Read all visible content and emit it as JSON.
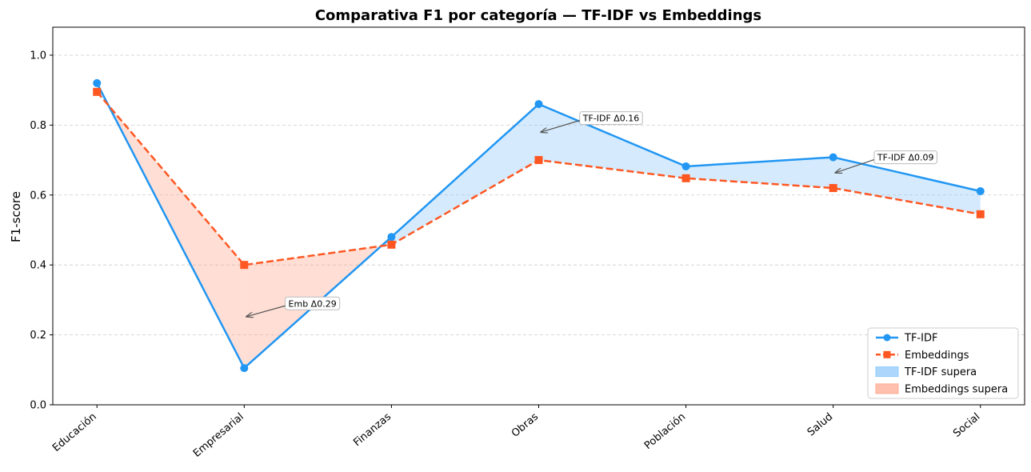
{
  "chart_data": {
    "type": "line",
    "title": "Comparativa F1 por categoría — TF-IDF vs Embeddings",
    "xlabel": "",
    "ylabel": "F1-score",
    "ylim": [
      0,
      1.08
    ],
    "yticks": [
      "0.0",
      "0.2",
      "0.4",
      "0.6",
      "0.8",
      "1.0"
    ],
    "ytick_values": [
      0,
      0.2,
      0.4,
      0.6,
      0.8,
      1.0
    ],
    "grid": true,
    "legend_position": "bottom-right",
    "categories": [
      "Educación",
      "Empresarial",
      "Finanzas",
      "Obras",
      "Población",
      "Salud",
      "Social"
    ],
    "series": [
      {
        "name": "TF-IDF",
        "values": [
          0.92,
          0.105,
          0.48,
          0.86,
          0.682,
          0.708,
          0.611
        ],
        "color": "#2196F3",
        "marker": "circle",
        "linestyle": "solid"
      },
      {
        "name": "Embeddings",
        "values": [
          0.895,
          0.4,
          0.458,
          0.7,
          0.648,
          0.62,
          0.545
        ],
        "color": "#FF5722",
        "marker": "square",
        "linestyle": "dashed"
      }
    ],
    "fills": [
      {
        "name": "TF-IDF supera",
        "color": "#90CAF9"
      },
      {
        "name": "Embeddings supera",
        "color": "#FFAB91"
      }
    ],
    "annotations": [
      {
        "text": "Emb  Δ0.29",
        "category_index": 1,
        "value": 0.2525,
        "text_value": 0.29
      },
      {
        "text": "TF-IDF  Δ0.16",
        "category_index": 3,
        "value": 0.78,
        "text_value": 0.82
      },
      {
        "text": "TF-IDF  Δ0.09",
        "category_index": 5,
        "value": 0.664,
        "text_value": 0.708
      }
    ]
  }
}
